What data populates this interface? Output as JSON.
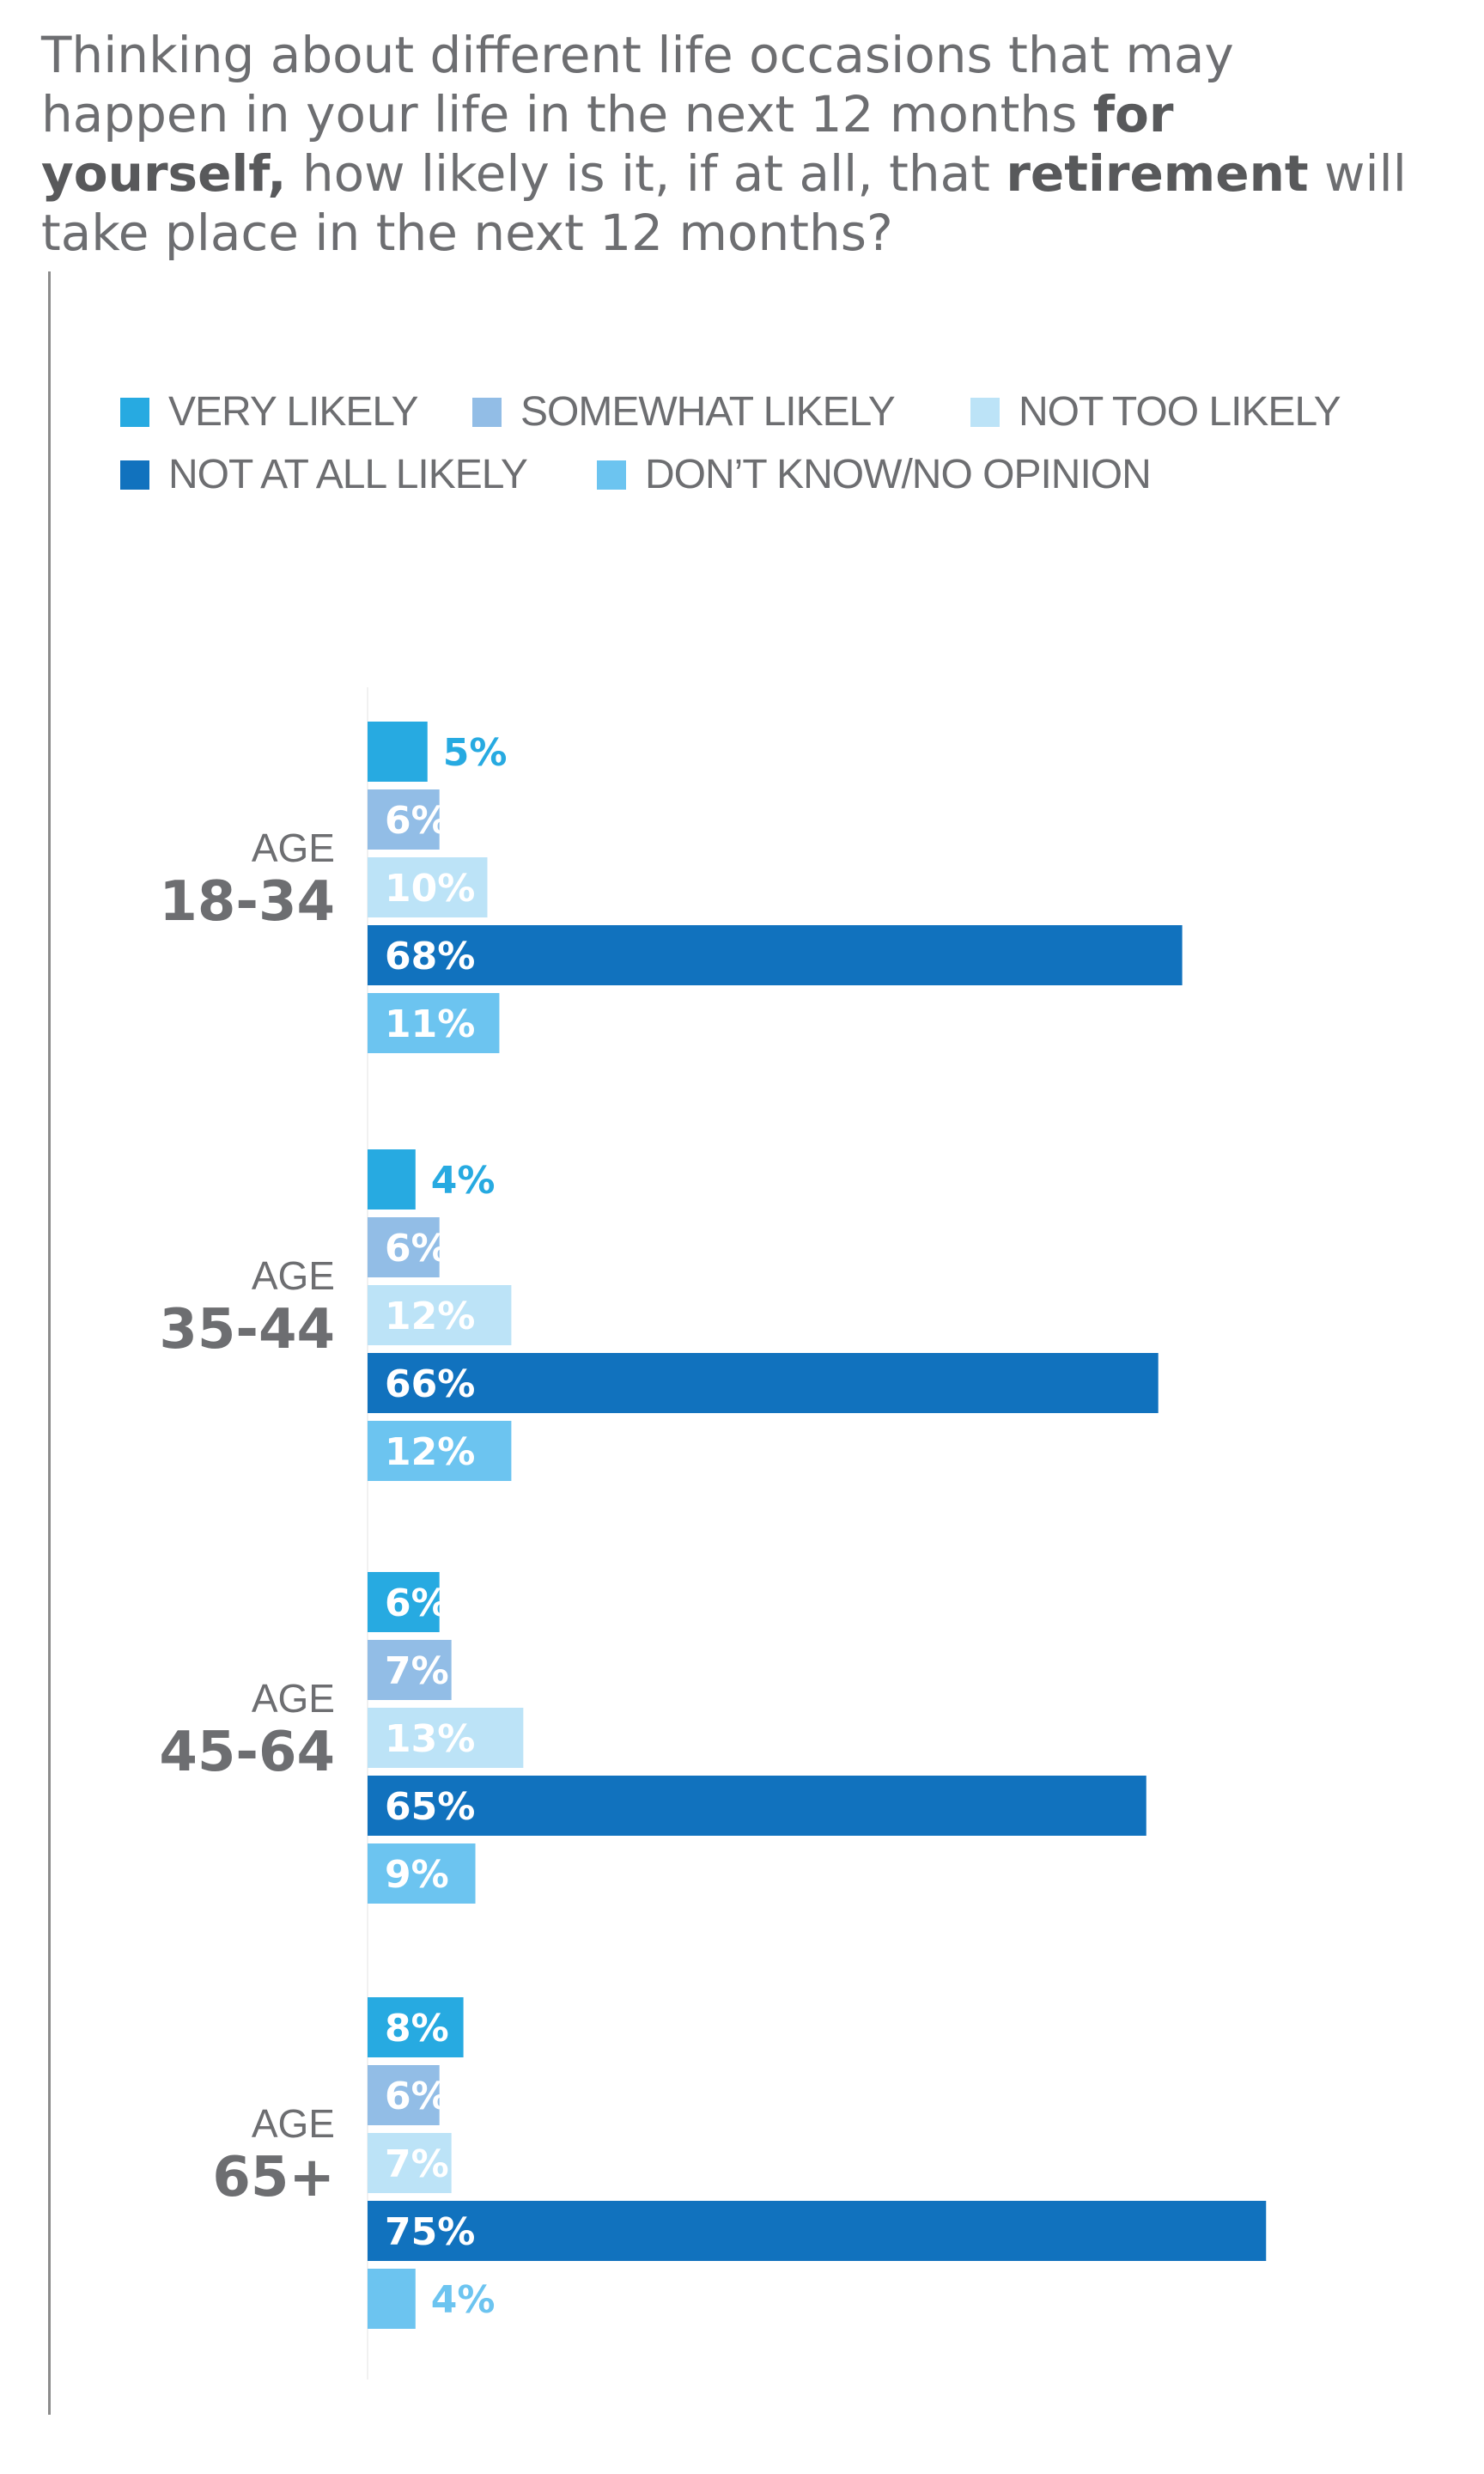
{
  "title": {
    "part1": "Thinking about different life occasions that may happen in your life in the next 12 months ",
    "bold1": "for yourself,",
    "part2": " how likely is it, if at all, that ",
    "bold2": "retirement",
    "part3": " will take place in the next 12 months?"
  },
  "chart_data": {
    "type": "bar",
    "orientation": "horizontal",
    "grouped": true,
    "value_suffix": "%",
    "xlim": [
      0,
      80
    ],
    "grid": false,
    "legend_position": "top",
    "group_prefix": "AGE",
    "categories": [
      "18-34",
      "35-44",
      "45-64",
      "65+"
    ],
    "series": [
      {
        "name": "VERY LIKELY",
        "color": "#27aae1",
        "values": [
          5,
          4,
          6,
          8
        ]
      },
      {
        "name": "SOMEWHAT LIKELY",
        "color": "#92bde6",
        "values": [
          6,
          6,
          7,
          6
        ]
      },
      {
        "name": "NOT TOO LIKELY",
        "color": "#bce3f7",
        "values": [
          10,
          12,
          13,
          7
        ]
      },
      {
        "name": "NOT AT ALL LIKELY",
        "color": "#1172be",
        "values": [
          68,
          66,
          65,
          75
        ]
      },
      {
        "name": "DON’T KNOW/NO OPINION",
        "color": "#6cc4f0",
        "values": [
          11,
          12,
          9,
          4
        ]
      }
    ]
  }
}
